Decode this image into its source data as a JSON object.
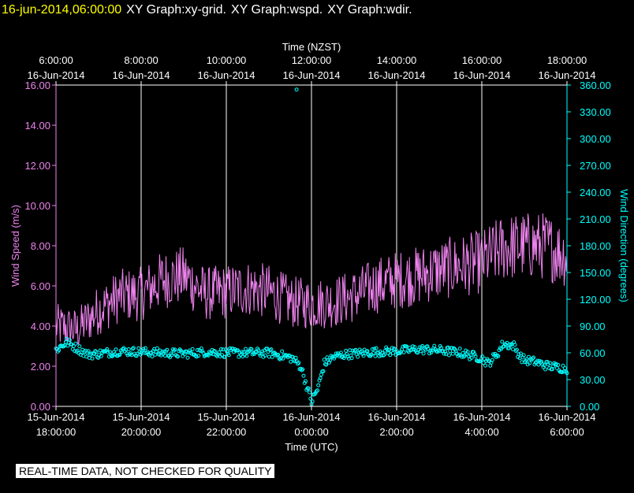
{
  "header": {
    "timestamp": "16-jun-2014,06:00:00",
    "graphs": [
      "XY Graph:xy-grid.",
      "XY Graph:wspd.",
      "XY Graph:wdir."
    ]
  },
  "footer_note": "REAL-TIME DATA, NOT CHECKED FOR QUALITY",
  "colors": {
    "background": "#000000",
    "wind_speed": "#ee82ee",
    "wind_direction": "#00ffff",
    "grid": "#ffffff",
    "timestamp": "#ffff00"
  },
  "chart_data": {
    "type": "line",
    "grid": true,
    "x_top": {
      "label": "Time (NZST)",
      "ticks": [
        {
          "time": "6:00:00",
          "date": "16-Jun-2014"
        },
        {
          "time": "8:00:00",
          "date": "16-Jun-2014"
        },
        {
          "time": "10:00:00",
          "date": "16-Jun-2014"
        },
        {
          "time": "12:00:00",
          "date": "16-Jun-2014"
        },
        {
          "time": "14:00:00",
          "date": "16-Jun-2014"
        },
        {
          "time": "16:00:00",
          "date": "16-Jun-2014"
        },
        {
          "time": "18:00:00",
          "date": "16-Jun-2014"
        }
      ]
    },
    "x_bottom": {
      "label": "Time (UTC)",
      "range": [
        "2014-06-15 18:00",
        "2014-06-16 06:00"
      ],
      "ticks": [
        {
          "date": "15-Jun-2014",
          "time": "18:00:00"
        },
        {
          "date": "15-Jun-2014",
          "time": "20:00:00"
        },
        {
          "date": "15-Jun-2014",
          "time": "22:00:00"
        },
        {
          "date": "16-Jun-2014",
          "time": "0:00:00"
        },
        {
          "date": "16-Jun-2014",
          "time": "2:00:00"
        },
        {
          "date": "16-Jun-2014",
          "time": "4:00:00"
        },
        {
          "date": "16-Jun-2014",
          "time": "6:00:00"
        }
      ]
    },
    "y_left": {
      "label": "Wind Speed (m/s)",
      "ylim": [
        0,
        16
      ],
      "ticks": [
        "0.00",
        "2.00",
        "4.00",
        "6.00",
        "8.00",
        "10.00",
        "12.00",
        "14.00",
        "16.00"
      ]
    },
    "y_right": {
      "label": "Wind Direction (degrees)",
      "ylim": [
        0,
        360
      ],
      "ticks": [
        "0.00",
        "30.00",
        "60.00",
        "90.00",
        "120.00",
        "150.00",
        "180.00",
        "210.00",
        "240.00",
        "270.00",
        "300.00",
        "330.00",
        "360.00"
      ]
    },
    "series": [
      {
        "name": "wspd",
        "axis": "left",
        "style": "line",
        "x_hours_utc": [
          18.0,
          18.5,
          19.0,
          19.5,
          20.0,
          20.5,
          21.0,
          21.5,
          22.0,
          22.5,
          23.0,
          23.5,
          24.0,
          24.5,
          25.0,
          25.5,
          26.0,
          26.5,
          27.0,
          27.5,
          28.0,
          28.5,
          29.0,
          29.5,
          30.0
        ],
        "values": [
          4.0,
          3.8,
          4.8,
          5.5,
          5.6,
          6.3,
          6.5,
          5.6,
          5.7,
          5.9,
          5.7,
          5.2,
          5.1,
          5.2,
          5.5,
          6.0,
          6.3,
          6.5,
          6.8,
          7.0,
          7.2,
          7.9,
          8.0,
          8.0,
          7.5
        ]
      },
      {
        "name": "wdir",
        "axis": "right",
        "style": "circles",
        "x_hours_utc": [
          18.0,
          18.25,
          18.5,
          18.75,
          19.0,
          19.5,
          20.0,
          20.5,
          21.0,
          21.5,
          22.0,
          22.5,
          23.0,
          23.3,
          23.55,
          23.75,
          24.0,
          24.15,
          24.3,
          24.5,
          24.75,
          25.0,
          25.5,
          26.0,
          26.5,
          27.0,
          27.5,
          28.0,
          28.15,
          28.35,
          28.5,
          28.75,
          28.9,
          29.0,
          29.25,
          29.5,
          29.75,
          30.0
        ],
        "values": [
          63,
          72,
          65,
          58,
          59,
          62,
          61,
          60,
          59,
          61,
          60,
          60,
          60,
          57,
          54,
          45,
          5,
          20,
          48,
          55,
          58,
          59,
          61,
          62,
          64,
          63,
          60,
          54,
          48,
          58,
          70,
          68,
          56,
          52,
          50,
          46,
          44,
          42
        ]
      },
      {
        "name": "wdir-outlier",
        "axis": "right",
        "style": "circles",
        "x_hours_utc": [
          23.65
        ],
        "values": [
          355
        ]
      }
    ]
  }
}
